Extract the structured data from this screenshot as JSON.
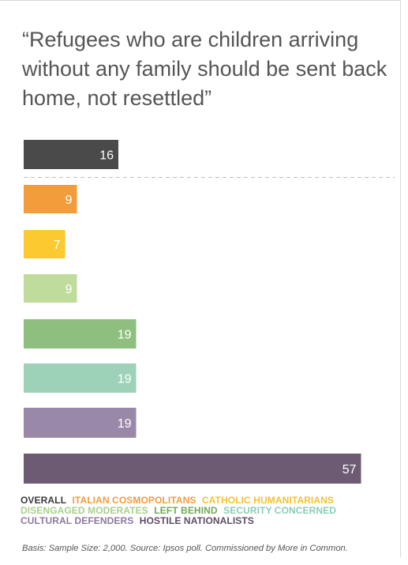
{
  "title": "“Refugees who are children arriving without any family should be sent back home, not resettled”",
  "chart_data": {
    "type": "bar",
    "orientation": "horizontal",
    "categories": [
      "OVERALL",
      "ITALIAN COSMOPOLITANS",
      "CATHOLIC HUMANITARIANS",
      "DISENGAGED MODERATES",
      "LEFT BEHIND",
      "SECURITY CONCERNED",
      "CULTURAL DEFENDERS",
      "HOSTILE NATIONALISTS"
    ],
    "values": [
      16,
      9,
      7,
      9,
      19,
      19,
      19,
      57
    ],
    "colors": [
      "#4a4a4a",
      "#f39c3c",
      "#fcc930",
      "#bfdc9c",
      "#8fbf7e",
      "#9ed2b8",
      "#9a88a8",
      "#6d5a73"
    ],
    "legend_colors": [
      "#3a3a3a",
      "#f39c3c",
      "#f7c12e",
      "#a8d08a",
      "#6faa55",
      "#8ccdb4",
      "#8c7a9e",
      "#5e4b66"
    ],
    "label_color": "#ffffff",
    "separator_after_first": true,
    "legend_position": "bottom",
    "grid": false
  },
  "source": "Basis: Sample Size: 2,000. Source: Ipsos poll. Commissioned by More in Common."
}
